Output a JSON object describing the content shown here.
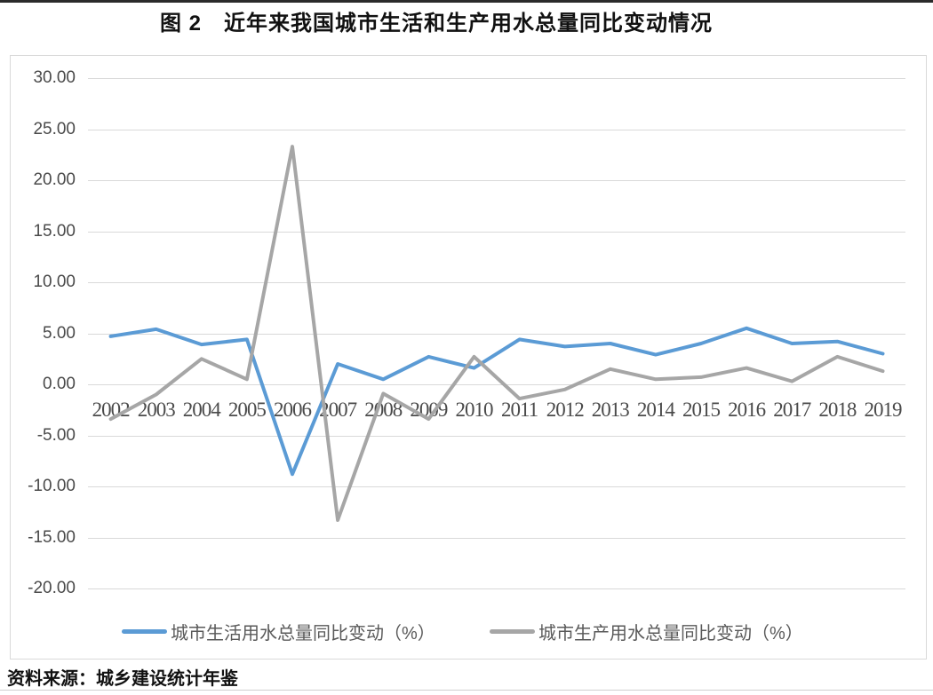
{
  "page": {
    "title": "图 2　近年来我国城市生活和生产用水总量同比变动情况",
    "source_note": "资料来源：城乡建设统计年鉴"
  },
  "chart_data": {
    "type": "line",
    "title": "图 2　近年来我国城市生活和生产用水总量同比变动情况",
    "x": [
      2002,
      2003,
      2004,
      2005,
      2006,
      2007,
      2008,
      2009,
      2010,
      2011,
      2012,
      2013,
      2014,
      2015,
      2016,
      2017,
      2018,
      2019
    ],
    "series": [
      {
        "name": "城市生活用水总量同比变动（%）",
        "color": "#5B9BD5",
        "values": [
          4.7,
          5.4,
          3.9,
          4.4,
          -8.8,
          2.0,
          0.5,
          2.7,
          1.6,
          4.4,
          3.7,
          4.0,
          2.9,
          4.0,
          5.5,
          4.0,
          4.2,
          3.0
        ]
      },
      {
        "name": "城市生产用水总量同比变动（%）",
        "color": "#A6A6A6",
        "values": [
          -3.4,
          -1.0,
          2.5,
          0.5,
          23.3,
          -13.3,
          -0.9,
          -3.4,
          2.7,
          -1.4,
          -0.5,
          1.5,
          0.5,
          0.7,
          1.6,
          0.3,
          2.7,
          1.3
        ]
      }
    ],
    "ylim": [
      -20,
      30
    ],
    "y_tick_step": 5,
    "y_ticks": [
      "30.00",
      "25.00",
      "20.00",
      "15.00",
      "10.00",
      "5.00",
      "0.00",
      "-5.00",
      "-10.00",
      "-15.00",
      "-20.00"
    ],
    "xlabel": "",
    "ylabel": "",
    "grid": "horizontal",
    "legend_position": "bottom",
    "colors": {
      "grid": "#D9D9D9",
      "axis_text": "#4A4A4A",
      "chart_border": "#D9D9D9"
    }
  }
}
